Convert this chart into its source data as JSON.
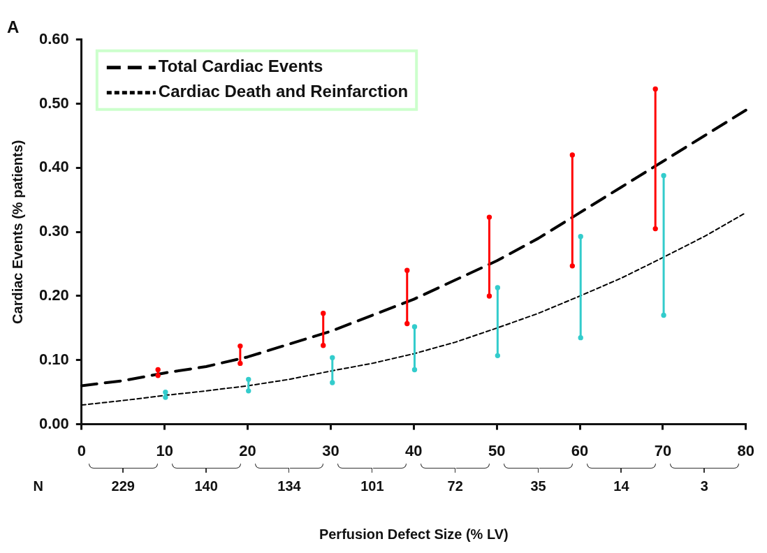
{
  "chart_data": {
    "type": "line",
    "title": "A",
    "xlabel": "Perfusion Defect Size (% LV)",
    "ylabel": "Cardiac Events (% patients)",
    "xlim": [
      0,
      80
    ],
    "xticks": [
      0,
      10,
      20,
      30,
      40,
      50,
      60,
      70,
      80
    ],
    "ylim": [
      0,
      0.6
    ],
    "yticks": [
      {
        "value": 0,
        "label": "0.00"
      },
      {
        "value": 0.1,
        "label": "0.10"
      },
      {
        "value": 0.2,
        "label": "0.20"
      },
      {
        "value": 0.3,
        "label": "0.30"
      },
      {
        "value": 0.4,
        "label": "0.40"
      },
      {
        "value": 0.5,
        "label": "0.50"
      },
      {
        "value": 0.6,
        "label": "0.60"
      }
    ],
    "grid": false,
    "legend": "top left",
    "series": [
      {
        "type": "line",
        "name": "Total Cardiac Events",
        "color": "#000000",
        "line_style": "dashed",
        "marker": "none",
        "x": [
          0,
          5,
          10,
          15,
          20,
          25,
          30,
          35,
          40,
          45,
          50,
          55,
          60,
          65,
          70,
          75,
          80
        ],
        "values": [
          0.06,
          0.068,
          0.08,
          0.09,
          0.105,
          0.125,
          0.145,
          0.17,
          0.195,
          0.225,
          0.255,
          0.29,
          0.33,
          0.37,
          0.41,
          0.45,
          0.49
        ]
      },
      {
        "type": "line",
        "name": "Cardiac Death and Reinfarction",
        "color": "#000000",
        "line_style": "dotted",
        "marker": "none",
        "x": [
          0,
          5,
          10,
          15,
          20,
          25,
          30,
          35,
          40,
          45,
          50,
          55,
          60,
          65,
          70,
          75,
          80
        ],
        "values": [
          0.03,
          0.037,
          0.045,
          0.052,
          0.06,
          0.07,
          0.083,
          0.095,
          0.11,
          0.128,
          0.15,
          0.173,
          0.2,
          0.228,
          0.26,
          0.293,
          0.33
        ]
      },
      {
        "type": "line",
        "color": "#ff0000",
        "marker": "circle",
        "line_style": "solid",
        "x": [
          9.2,
          9.2
        ],
        "values": [
          0.076,
          0.085
        ]
      },
      {
        "type": "line",
        "color": "#ff0000",
        "marker": "circle",
        "line_style": "solid",
        "x": [
          19.1,
          19.1
        ],
        "values": [
          0.095,
          0.122
        ]
      },
      {
        "type": "line",
        "color": "#ff0000",
        "marker": "circle",
        "line_style": "solid",
        "x": [
          29.1,
          29.1
        ],
        "values": [
          0.123,
          0.173
        ]
      },
      {
        "type": "line",
        "color": "#ff0000",
        "marker": "circle",
        "line_style": "solid",
        "x": [
          39.2,
          39.2
        ],
        "values": [
          0.157,
          0.24
        ]
      },
      {
        "type": "line",
        "color": "#ff0000",
        "marker": "circle",
        "line_style": "solid",
        "x": [
          49.1,
          49.1
        ],
        "values": [
          0.2,
          0.323
        ]
      },
      {
        "type": "line",
        "color": "#ff0000",
        "marker": "circle",
        "line_style": "solid",
        "x": [
          59.1,
          59.1
        ],
        "values": [
          0.247,
          0.42
        ]
      },
      {
        "type": "line",
        "color": "#ff0000",
        "marker": "circle",
        "line_style": "solid",
        "x": [
          69.1,
          69.1
        ],
        "values": [
          0.305,
          0.523
        ]
      },
      {
        "type": "line",
        "color": "#33cccc",
        "marker": "circle",
        "line_style": "solid",
        "x": [
          10.1,
          10.1
        ],
        "values": [
          0.042,
          0.05
        ]
      },
      {
        "type": "line",
        "color": "#33cccc",
        "marker": "circle",
        "line_style": "solid",
        "x": [
          20.1,
          20.1
        ],
        "values": [
          0.052,
          0.07
        ]
      },
      {
        "type": "line",
        "color": "#33cccc",
        "marker": "circle",
        "line_style": "solid",
        "x": [
          30.2,
          30.2
        ],
        "values": [
          0.065,
          0.104
        ]
      },
      {
        "type": "line",
        "color": "#33cccc",
        "marker": "circle",
        "line_style": "solid",
        "x": [
          40.1,
          40.1
        ],
        "values": [
          0.085,
          0.152
        ]
      },
      {
        "type": "line",
        "color": "#33cccc",
        "marker": "circle",
        "line_style": "solid",
        "x": [
          50.1,
          50.1
        ],
        "values": [
          0.107,
          0.213
        ]
      },
      {
        "type": "line",
        "color": "#33cccc",
        "marker": "circle",
        "line_style": "solid",
        "x": [
          60.1,
          60.1
        ],
        "values": [
          0.135,
          0.293
        ]
      },
      {
        "type": "line",
        "color": "#33cccc",
        "marker": "circle",
        "line_style": "solid",
        "x": [
          70.1,
          70.1
        ],
        "values": [
          0.17,
          0.388
        ]
      }
    ],
    "annotations": [
      "N",
      "229",
      "140",
      "134",
      "101",
      "72",
      "35",
      "14",
      "3"
    ]
  }
}
